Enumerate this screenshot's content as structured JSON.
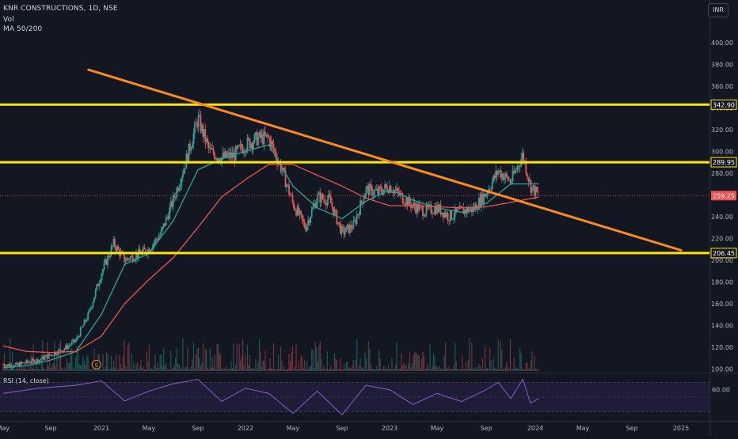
{
  "header": {
    "symbol_line": "KNR CONSTRUCTIONS, 1D, NSE",
    "volume_label": "Vol",
    "ma_label": "MA 50/200",
    "currency": "INR"
  },
  "colors": {
    "background": "#131722",
    "grid": "#1e2230",
    "axis_text": "#b2b5be",
    "candle_up": "#26a69a",
    "candle_down": "#ef5350",
    "ma50": "#26a69a",
    "ma200": "#f0524f",
    "support_resistance": "#ffe600",
    "trendline": "#ff8c1a",
    "rsi": "#7e57c2",
    "rsi_band": "#2a2149",
    "last_price_bg": "#ef5350"
  },
  "chart_data": [
    {
      "type": "candlestick",
      "title": "KNR CONSTRUCTIONS, 1D, NSE",
      "ylabel": "INR",
      "ylim": [
        98,
        410
      ],
      "x_ticks": [
        "May",
        "Sep",
        "2021",
        "May",
        "Sep",
        "2022",
        "May",
        "Sep",
        "2023",
        "May",
        "Sep",
        "2024",
        "May",
        "Sep",
        "2025"
      ],
      "x_tick_dates": [
        "2020-05",
        "2020-09",
        "2021-01",
        "2021-05",
        "2021-09",
        "2022-01",
        "2022-05",
        "2022-09",
        "2023-01",
        "2023-05",
        "2023-09",
        "2024-01",
        "2024-05",
        "2024-09",
        "2025-01"
      ],
      "y_ticks": [
        100,
        120,
        140,
        160,
        180,
        200,
        220,
        240,
        260,
        280,
        300,
        320,
        340,
        360,
        380,
        400
      ],
      "y_tick_labels": [
        "100.00",
        "120.00",
        "140.00",
        "160.00",
        "180.00",
        "200.00",
        "220.00",
        "240.00",
        "260.00",
        "280.00",
        "300.00",
        "320.00",
        "340.00",
        "360.00",
        "380.00",
        "400.00"
      ],
      "grid": false,
      "last_price": 259.25,
      "last_price_label": "259.25",
      "horizontal_levels": [
        {
          "value": 342.9,
          "label": "342.90"
        },
        {
          "value": 289.95,
          "label": "289.95"
        },
        {
          "value": 206.45,
          "label": "206.45"
        }
      ],
      "trendline": {
        "start": {
          "x": "2020-12-01",
          "y": 375
        },
        "end": {
          "x": "2025-01-01",
          "y": 209
        }
      },
      "price_path": [
        {
          "x": "2020-05-01",
          "y": 104
        },
        {
          "x": "2020-06-01",
          "y": 103
        },
        {
          "x": "2020-07-01",
          "y": 106
        },
        {
          "x": "2020-08-01",
          "y": 108
        },
        {
          "x": "2020-09-01",
          "y": 113
        },
        {
          "x": "2020-10-01",
          "y": 118
        },
        {
          "x": "2020-11-01",
          "y": 126
        },
        {
          "x": "2020-12-01",
          "y": 150
        },
        {
          "x": "2021-01-01",
          "y": 188
        },
        {
          "x": "2021-02-01",
          "y": 215
        },
        {
          "x": "2021-03-01",
          "y": 200
        },
        {
          "x": "2021-04-01",
          "y": 205
        },
        {
          "x": "2021-05-01",
          "y": 210
        },
        {
          "x": "2021-06-01",
          "y": 225
        },
        {
          "x": "2021-07-01",
          "y": 255
        },
        {
          "x": "2021-08-01",
          "y": 290
        },
        {
          "x": "2021-09-01",
          "y": 330
        },
        {
          "x": "2021-10-01",
          "y": 300
        },
        {
          "x": "2021-11-01",
          "y": 294
        },
        {
          "x": "2021-12-01",
          "y": 296
        },
        {
          "x": "2022-01-01",
          "y": 306
        },
        {
          "x": "2022-02-01",
          "y": 312
        },
        {
          "x": "2022-03-01",
          "y": 312
        },
        {
          "x": "2022-04-01",
          "y": 285
        },
        {
          "x": "2022-05-01",
          "y": 252
        },
        {
          "x": "2022-06-01",
          "y": 230
        },
        {
          "x": "2022-07-01",
          "y": 258
        },
        {
          "x": "2022-08-01",
          "y": 255
        },
        {
          "x": "2022-09-01",
          "y": 225
        },
        {
          "x": "2022-10-01",
          "y": 232
        },
        {
          "x": "2022-11-01",
          "y": 265
        },
        {
          "x": "2022-12-01",
          "y": 262
        },
        {
          "x": "2023-01-01",
          "y": 268
        },
        {
          "x": "2023-02-01",
          "y": 258
        },
        {
          "x": "2023-03-01",
          "y": 250
        },
        {
          "x": "2023-04-01",
          "y": 245
        },
        {
          "x": "2023-05-01",
          "y": 248
        },
        {
          "x": "2023-06-01",
          "y": 240
        },
        {
          "x": "2023-07-01",
          "y": 245
        },
        {
          "x": "2023-08-01",
          "y": 247
        },
        {
          "x": "2023-09-01",
          "y": 262
        },
        {
          "x": "2023-10-01",
          "y": 282
        },
        {
          "x": "2023-11-01",
          "y": 272
        },
        {
          "x": "2023-12-01",
          "y": 297
        },
        {
          "x": "2023-12-20",
          "y": 268
        },
        {
          "x": "2024-01-10",
          "y": 259
        }
      ],
      "series": [
        {
          "name": "MA 50",
          "color": "#26a69a",
          "points": [
            {
              "x": "2020-05-01",
              "y": 101
            },
            {
              "x": "2020-07-01",
              "y": 103
            },
            {
              "x": "2020-09-01",
              "y": 108
            },
            {
              "x": "2020-11-01",
              "y": 116
            },
            {
              "x": "2021-01-01",
              "y": 150
            },
            {
              "x": "2021-03-01",
              "y": 196
            },
            {
              "x": "2021-05-01",
              "y": 206
            },
            {
              "x": "2021-07-01",
              "y": 236
            },
            {
              "x": "2021-09-01",
              "y": 283
            },
            {
              "x": "2021-11-01",
              "y": 293
            },
            {
              "x": "2022-01-01",
              "y": 300
            },
            {
              "x": "2022-03-01",
              "y": 306
            },
            {
              "x": "2022-05-01",
              "y": 268
            },
            {
              "x": "2022-07-01",
              "y": 248
            },
            {
              "x": "2022-09-01",
              "y": 238
            },
            {
              "x": "2022-11-01",
              "y": 254
            },
            {
              "x": "2023-01-01",
              "y": 265
            },
            {
              "x": "2023-03-01",
              "y": 255
            },
            {
              "x": "2023-05-01",
              "y": 248
            },
            {
              "x": "2023-07-01",
              "y": 244
            },
            {
              "x": "2023-09-01",
              "y": 252
            },
            {
              "x": "2023-11-01",
              "y": 270
            },
            {
              "x": "2024-01-10",
              "y": 270
            }
          ]
        },
        {
          "name": "MA 200",
          "color": "#f0524f",
          "points": [
            {
              "x": "2020-05-01",
              "y": 121
            },
            {
              "x": "2020-07-01",
              "y": 116
            },
            {
              "x": "2020-09-01",
              "y": 115
            },
            {
              "x": "2020-11-01",
              "y": 116
            },
            {
              "x": "2021-01-01",
              "y": 130
            },
            {
              "x": "2021-03-01",
              "y": 160
            },
            {
              "x": "2021-05-01",
              "y": 182
            },
            {
              "x": "2021-07-01",
              "y": 202
            },
            {
              "x": "2021-09-01",
              "y": 230
            },
            {
              "x": "2021-11-01",
              "y": 258
            },
            {
              "x": "2022-01-01",
              "y": 274
            },
            {
              "x": "2022-03-01",
              "y": 288
            },
            {
              "x": "2022-05-01",
              "y": 288
            },
            {
              "x": "2022-07-01",
              "y": 278
            },
            {
              "x": "2022-09-01",
              "y": 268
            },
            {
              "x": "2022-11-01",
              "y": 257
            },
            {
              "x": "2023-01-01",
              "y": 250
            },
            {
              "x": "2023-03-01",
              "y": 250
            },
            {
              "x": "2023-05-01",
              "y": 249
            },
            {
              "x": "2023-07-01",
              "y": 248
            },
            {
              "x": "2023-09-01",
              "y": 249
            },
            {
              "x": "2023-11-01",
              "y": 253
            },
            {
              "x": "2024-01-10",
              "y": 258
            }
          ]
        }
      ],
      "events": [
        {
          "x": "2020-12-20",
          "label": "S"
        }
      ]
    },
    {
      "type": "line",
      "title": "RSI (14, close)",
      "ylim": [
        20,
        80
      ],
      "y_ticks": [
        60
      ],
      "y_tick_labels": [
        "60.00"
      ],
      "bands": [
        30,
        50,
        70
      ],
      "values_note_omitted": false,
      "points": [
        {
          "x": "2020-05-01",
          "y": 55
        },
        {
          "x": "2020-08-01",
          "y": 62
        },
        {
          "x": "2020-11-01",
          "y": 66
        },
        {
          "x": "2021-01-01",
          "y": 72
        },
        {
          "x": "2021-03-01",
          "y": 45
        },
        {
          "x": "2021-05-01",
          "y": 58
        },
        {
          "x": "2021-07-01",
          "y": 68
        },
        {
          "x": "2021-09-01",
          "y": 74
        },
        {
          "x": "2021-11-01",
          "y": 44
        },
        {
          "x": "2022-01-01",
          "y": 62
        },
        {
          "x": "2022-03-01",
          "y": 55
        },
        {
          "x": "2022-05-01",
          "y": 28
        },
        {
          "x": "2022-07-01",
          "y": 58
        },
        {
          "x": "2022-09-01",
          "y": 26
        },
        {
          "x": "2022-11-01",
          "y": 66
        },
        {
          "x": "2023-01-01",
          "y": 60
        },
        {
          "x": "2023-03-01",
          "y": 40
        },
        {
          "x": "2023-05-01",
          "y": 55
        },
        {
          "x": "2023-07-01",
          "y": 44
        },
        {
          "x": "2023-09-01",
          "y": 60
        },
        {
          "x": "2023-10-01",
          "y": 70
        },
        {
          "x": "2023-11-01",
          "y": 48
        },
        {
          "x": "2023-12-01",
          "y": 74
        },
        {
          "x": "2023-12-20",
          "y": 42
        },
        {
          "x": "2024-01-10",
          "y": 48
        }
      ]
    }
  ]
}
